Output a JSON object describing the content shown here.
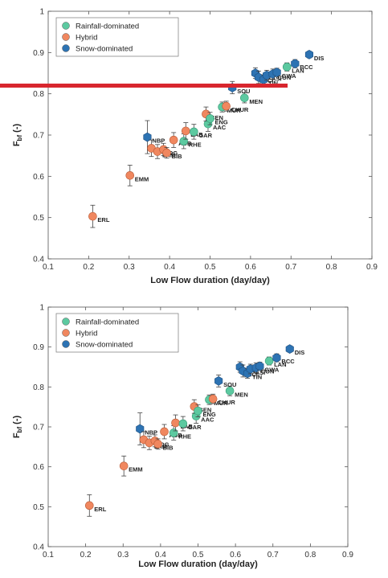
{
  "colors": {
    "rainfall": "#5cc9a0",
    "hybrid": "#f0875f",
    "snow": "#2d73b3",
    "highlight": "#d8262e"
  },
  "chart_data": [
    {
      "type": "scatter",
      "title": "",
      "xlabel": "Low Flow duration (day/day)",
      "ylabel": "F",
      "ylabel_sub": "bf",
      "ylabel_suffix": " (-)",
      "xlim": [
        0.1,
        0.9
      ],
      "ylim": [
        0.4,
        1.0
      ],
      "xticks": [
        "0.1",
        "0.2",
        "0.3",
        "0.4",
        "0.5",
        "0.6",
        "0.7",
        "0.8",
        "0.9"
      ],
      "yticks": [
        "0.4",
        "0.5",
        "0.6",
        "0.7",
        "0.8",
        "0.9",
        "1"
      ],
      "legend": [
        "Rainfall-dominated",
        "Hybrid",
        "Snow-dominated"
      ],
      "legend_position": "top-left",
      "highlight_line_y": 0.82,
      "points": [
        {
          "label": "ERL",
          "x": 0.21,
          "y": 0.503,
          "group": "hybrid",
          "err": 0.027
        },
        {
          "label": "EMM",
          "x": 0.302,
          "y": 0.602,
          "group": "hybrid",
          "err": 0.025
        },
        {
          "label": "NBP",
          "x": 0.345,
          "y": 0.695,
          "group": "snow",
          "err": 0.04
        },
        {
          "label": "STE",
          "x": 0.355,
          "y": 0.668,
          "group": "hybrid",
          "err": 0.02
        },
        {
          "label": "LAM",
          "x": 0.37,
          "y": 0.66,
          "group": "hybrid",
          "err": 0.017
        },
        {
          "label": "OG",
          "x": 0.385,
          "y": 0.665,
          "group": "hybrid",
          "err": 0.015
        },
        {
          "label": "BIB",
          "x": 0.393,
          "y": 0.657,
          "group": "hybrid",
          "err": 0.013
        },
        {
          "label": "AUB",
          "x": 0.41,
          "y": 0.688,
          "group": "hybrid",
          "err": 0.018
        },
        {
          "label": "RHE",
          "x": 0.435,
          "y": 0.685,
          "group": "rainfall",
          "err": 0.018
        },
        {
          "label": "LAB",
          "x": 0.44,
          "y": 0.71,
          "group": "hybrid",
          "err": 0.02
        },
        {
          "label": "GAR",
          "x": 0.46,
          "y": 0.708,
          "group": "rainfall",
          "err": 0.018
        },
        {
          "label": "AAC",
          "x": 0.495,
          "y": 0.727,
          "group": "rainfall",
          "err": 0.018
        },
        {
          "label": "SEN",
          "x": 0.49,
          "y": 0.751,
          "group": "hybrid",
          "err": 0.017
        },
        {
          "label": "ENG",
          "x": 0.5,
          "y": 0.74,
          "group": "rainfall",
          "err": 0.015
        },
        {
          "label": "MUR",
          "x": 0.53,
          "y": 0.768,
          "group": "rainfall",
          "err": 0.012
        },
        {
          "label": "CHUR",
          "x": 0.54,
          "y": 0.77,
          "group": "hybrid",
          "err": 0.012
        },
        {
          "label": "MEN",
          "x": 0.585,
          "y": 0.79,
          "group": "rainfall",
          "err": 0.012
        },
        {
          "label": "SOU",
          "x": 0.555,
          "y": 0.815,
          "group": "snow",
          "err": 0.015
        },
        {
          "label": "IRN",
          "x": 0.612,
          "y": 0.85,
          "group": "snow",
          "err": 0.013
        },
        {
          "label": "SCI",
          "x": 0.62,
          "y": 0.84,
          "group": "snow",
          "err": 0.015
        },
        {
          "label": "TIN",
          "x": 0.632,
          "y": 0.834,
          "group": "snow",
          "err": 0.012
        },
        {
          "label": "ASI",
          "x": 0.64,
          "y": 0.845,
          "group": "snow",
          "err": 0.012
        },
        {
          "label": "CON",
          "x": 0.655,
          "y": 0.848,
          "group": "snow",
          "err": 0.012
        },
        {
          "label": "GWA",
          "x": 0.665,
          "y": 0.852,
          "group": "snow",
          "err": 0.01
        },
        {
          "label": "LAN",
          "x": 0.69,
          "y": 0.865,
          "group": "rainfall",
          "err": 0.01
        },
        {
          "label": "BCC",
          "x": 0.71,
          "y": 0.873,
          "group": "snow",
          "err": 0.01
        },
        {
          "label": "DIS",
          "x": 0.745,
          "y": 0.895,
          "group": "snow",
          "err": 0.008
        }
      ]
    },
    {
      "type": "scatter",
      "title": "",
      "xlabel": "Low Flow duration (day/day)",
      "ylabel": "F",
      "ylabel_sub": "bf",
      "ylabel_suffix": " (-)",
      "xlim": [
        0.1,
        0.9
      ],
      "ylim": [
        0.4,
        1.0
      ],
      "xticks": [
        "0.1",
        "0.2",
        "0.3",
        "0.4",
        "0.5",
        "0.6",
        "0.7",
        "0.8",
        "0.9"
      ],
      "yticks": [
        "0.4",
        "0.5",
        "0.6",
        "0.7",
        "0.8",
        "0.9",
        "1"
      ],
      "legend": [
        "Rainfall-dominated",
        "Hybrid",
        "Snow-dominated"
      ],
      "legend_position": "top-left",
      "points": "same as chart 1"
    }
  ]
}
